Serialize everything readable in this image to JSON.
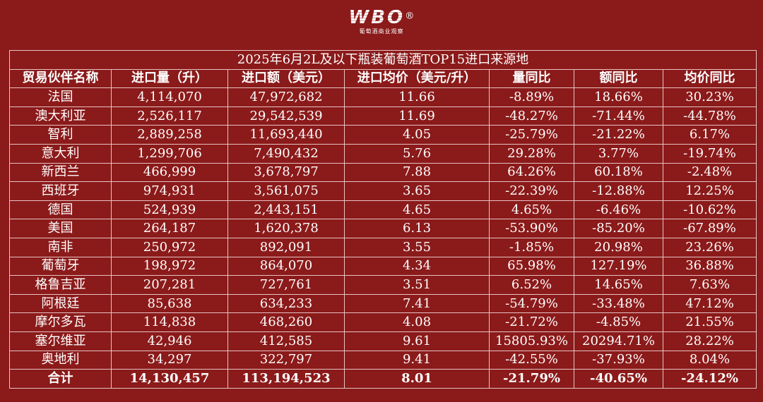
{
  "logo": {
    "mark": "WBO",
    "registered": "®",
    "subtitle": "葡萄酒商业观察"
  },
  "table": {
    "title": "2025年6月2L及以下瓶装葡萄酒TOP15进口来源地",
    "headers": [
      "贸易伙伴名称",
      "进口量（升）",
      "进口额（美元）",
      "进口均价（美元/升）",
      "量同比",
      "额同比",
      "均价同比"
    ],
    "rows": [
      [
        "法国",
        "4,114,070",
        "47,972,682",
        "11.66",
        "-8.89%",
        "18.66%",
        "30.23%"
      ],
      [
        "澳大利亚",
        "2,526,117",
        "29,542,539",
        "11.69",
        "-48.27%",
        "-71.44%",
        "-44.78%"
      ],
      [
        "智利",
        "2,889,258",
        "11,693,440",
        "4.05",
        "-25.79%",
        "-21.22%",
        "6.17%"
      ],
      [
        "意大利",
        "1,299,706",
        "7,490,432",
        "5.76",
        "29.28%",
        "3.77%",
        "-19.74%"
      ],
      [
        "新西兰",
        "466,999",
        "3,678,797",
        "7.88",
        "64.26%",
        "60.18%",
        "-2.48%"
      ],
      [
        "西班牙",
        "974,931",
        "3,561,075",
        "3.65",
        "-22.39%",
        "-12.88%",
        "12.25%"
      ],
      [
        "德国",
        "524,939",
        "2,443,151",
        "4.65",
        "4.65%",
        "-6.46%",
        "-10.62%"
      ],
      [
        "美国",
        "264,187",
        "1,620,378",
        "6.13",
        "-53.90%",
        "-85.20%",
        "-67.89%"
      ],
      [
        "南非",
        "250,972",
        "892,091",
        "3.55",
        "-1.85%",
        "20.98%",
        "23.26%"
      ],
      [
        "葡萄牙",
        "198,972",
        "864,070",
        "4.34",
        "65.98%",
        "127.19%",
        "36.88%"
      ],
      [
        "格鲁吉亚",
        "207,281",
        "727,761",
        "3.51",
        "6.52%",
        "14.65%",
        "7.63%"
      ],
      [
        "阿根廷",
        "85,638",
        "634,233",
        "7.41",
        "-54.79%",
        "-33.48%",
        "47.12%"
      ],
      [
        "摩尔多瓦",
        "114,838",
        "468,260",
        "4.08",
        "-21.72%",
        "-4.85%",
        "21.55%"
      ],
      [
        "塞尔维亚",
        "42,946",
        "412,585",
        "9.61",
        "15805.93%",
        "20294.71%",
        "28.22%"
      ],
      [
        "奥地利",
        "34,297",
        "322,797",
        "9.41",
        "-42.55%",
        "-37.93%",
        "8.04%"
      ]
    ],
    "total": [
      "合计",
      "14,130,457",
      "113,194,523",
      "8.01",
      "-21.79%",
      "-40.65%",
      "-24.12%"
    ]
  }
}
